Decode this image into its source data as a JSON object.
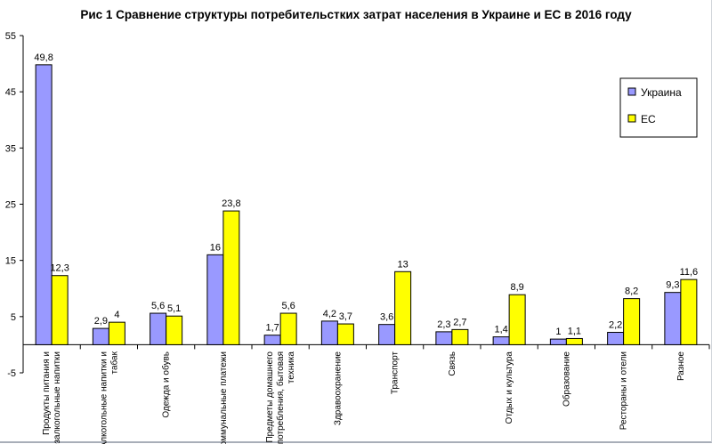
{
  "chart_data": {
    "type": "bar",
    "title": "Рис 1 Сравнение структуры потребительстких затрат населения в Украине и ЕС в 2016 году",
    "xlabel": "",
    "ylabel": "",
    "ylim": [
      -5,
      55
    ],
    "yticks": [
      -5,
      5,
      15,
      25,
      35,
      45,
      55
    ],
    "grid": false,
    "legend_position": "right",
    "categories": [
      [
        "Продукты питания и",
        "безалкогольные напитки"
      ],
      [
        "Алкогольные напитки и",
        "табак"
      ],
      [
        "Одежда и обувь"
      ],
      [
        "Коммунальные платежи"
      ],
      [
        "Предметы домашнего",
        "потребления, бытовая",
        "техника"
      ],
      [
        "Здравоохранение"
      ],
      [
        "Транспорт"
      ],
      [
        "Связь"
      ],
      [
        "Отдых и культура"
      ],
      [
        "Образование"
      ],
      [
        "Рестораны и отели"
      ],
      [
        "Разное"
      ]
    ],
    "series": [
      {
        "name": "Украина",
        "color": "#9999ff",
        "values": [
          49.8,
          2.9,
          5.6,
          16,
          1.7,
          4.2,
          3.6,
          2.3,
          1.4,
          1,
          2.2,
          9.3
        ],
        "labels": [
          "49,8",
          "2,9",
          "5,6",
          "16",
          "1,7",
          "4,2",
          "3,6",
          "2,3",
          "1,4",
          "1",
          "2,2",
          "9,3"
        ]
      },
      {
        "name": "ЕС",
        "color": "#ffff00",
        "values": [
          12.3,
          4,
          5.1,
          23.8,
          5.6,
          3.7,
          13,
          2.7,
          8.9,
          1.1,
          8.2,
          11.6
        ],
        "labels": [
          "12,3",
          "4",
          "5,1",
          "23,8",
          "5,6",
          "3,7",
          "13",
          "2,7",
          "8,9",
          "1,1",
          "8,2",
          "11,6"
        ]
      }
    ]
  }
}
